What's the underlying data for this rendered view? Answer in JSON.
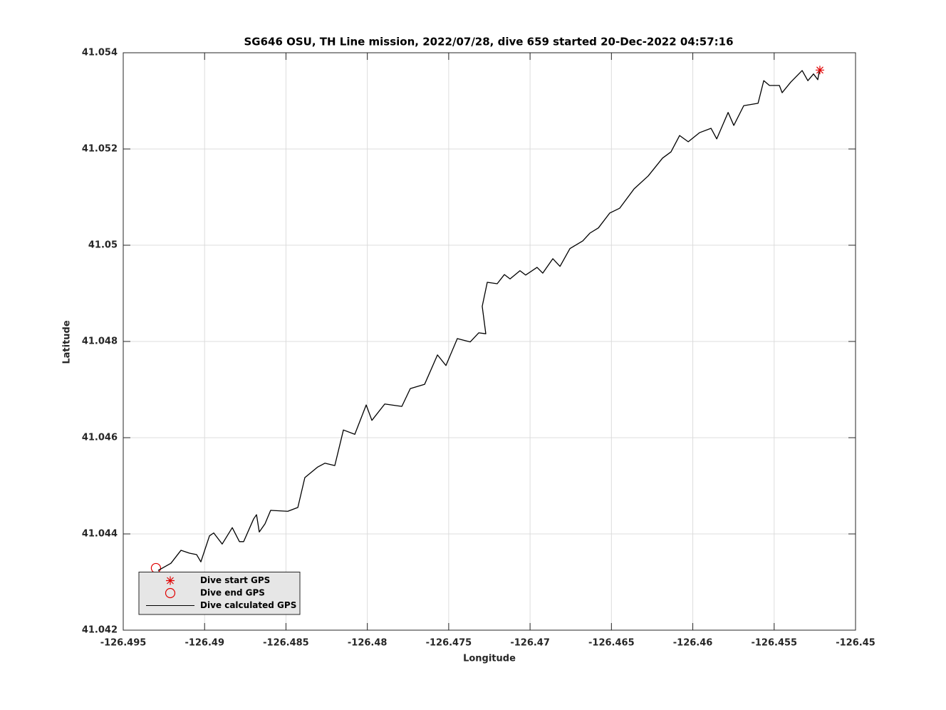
{
  "chart_data": {
    "type": "line",
    "title": "SG646 OSU, TH Line mission, 2022/07/28, dive 659 started 20-Dec-2022 04:57:16",
    "xlabel": "Longitude",
    "ylabel": "Latitude",
    "xlim": [
      -126.495,
      -126.45
    ],
    "ylim": [
      41.042,
      41.054
    ],
    "xticks": [
      -126.495,
      -126.49,
      -126.485,
      -126.48,
      -126.475,
      -126.47,
      -126.465,
      -126.46,
      -126.455,
      -126.45
    ],
    "yticks": [
      41.042,
      41.044,
      41.046,
      41.048,
      41.05,
      41.052,
      41.054
    ],
    "grid": true,
    "legend": "southwest",
    "series": [
      {
        "name": "Dive start GPS",
        "color": "#e00000",
        "marker": "star",
        "linestyle": "none",
        "x": [
          -126.45219
        ],
        "values": [
          41.05364
        ]
      },
      {
        "name": "Dive end GPS",
        "color": "#e00000",
        "marker": "circle",
        "linestyle": "none",
        "x": [
          -126.49299
        ],
        "values": [
          41.04329
        ]
      },
      {
        "name": "Dive calculated GPS",
        "color": "#000000",
        "marker": "none",
        "linestyle": "solid",
        "x": [
          -126.49286,
          -126.49207,
          -126.49145,
          -126.49093,
          -126.49049,
          -126.49023,
          -126.4897,
          -126.48944,
          -126.48892,
          -126.4883,
          -126.48786,
          -126.4876,
          -126.48699,
          -126.48681,
          -126.48664,
          -126.48629,
          -126.48594,
          -126.48489,
          -126.48427,
          -126.48384,
          -126.48305,
          -126.48261,
          -126.482,
          -126.48147,
          -126.48077,
          -126.48007,
          -126.47972,
          -126.47893,
          -126.47788,
          -126.47736,
          -126.47648,
          -126.47569,
          -126.47517,
          -126.47447,
          -126.47368,
          -126.47315,
          -126.47272,
          -126.47294,
          -126.47263,
          -126.47202,
          -126.47158,
          -126.47123,
          -126.47062,
          -126.47027,
          -126.46957,
          -126.46922,
          -126.4686,
          -126.46816,
          -126.46755,
          -126.46676,
          -126.46633,
          -126.4658,
          -126.4651,
          -126.46449,
          -126.46361,
          -126.46274,
          -126.46186,
          -126.46134,
          -126.46081,
          -126.46028,
          -126.45958,
          -126.45888,
          -126.45853,
          -126.45783,
          -126.45748,
          -126.45687,
          -126.45599,
          -126.45564,
          -126.45529,
          -126.45468,
          -126.45451,
          -126.45398,
          -126.45328,
          -126.45293,
          -126.45258,
          -126.45232,
          -126.45223
        ],
        "values": [
          41.04324,
          41.04339,
          41.04366,
          41.0436,
          41.04357,
          41.04342,
          41.04396,
          41.04402,
          41.04379,
          41.04413,
          41.04384,
          41.04384,
          41.04431,
          41.0444,
          41.04404,
          41.04421,
          41.04449,
          41.04447,
          41.04455,
          41.04517,
          41.04539,
          41.04547,
          41.04542,
          41.04616,
          41.04607,
          41.04668,
          41.04636,
          41.0467,
          41.04665,
          41.04702,
          41.04711,
          41.04772,
          41.0475,
          41.04806,
          41.04799,
          41.04818,
          41.04816,
          41.04873,
          41.04923,
          41.0492,
          41.04939,
          41.0493,
          41.04947,
          41.04938,
          41.04954,
          41.04942,
          41.04972,
          41.04956,
          41.04993,
          41.05009,
          41.05025,
          41.05036,
          41.05067,
          41.05077,
          41.05117,
          41.05144,
          41.05181,
          41.05194,
          41.05228,
          41.05215,
          41.05234,
          41.05243,
          41.05221,
          41.05276,
          41.05249,
          41.0529,
          41.05295,
          41.05342,
          41.05332,
          41.05332,
          41.05317,
          41.05339,
          41.05363,
          41.05342,
          41.05356,
          41.05344,
          41.05361
        ]
      }
    ]
  }
}
